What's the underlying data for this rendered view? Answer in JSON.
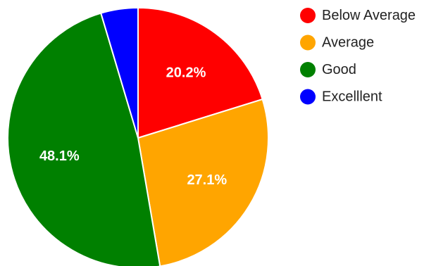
{
  "chart_data": {
    "type": "pie",
    "title": "",
    "categories": [
      "Below Average",
      "Average",
      "Good",
      "Excelllent"
    ],
    "values": [
      20.2,
      27.1,
      48.1,
      4.6
    ],
    "labels": [
      "20.2%",
      "27.1%",
      "48.1%",
      ""
    ],
    "colors": [
      "#ff0000",
      "#ffa500",
      "#008000",
      "#0000ff"
    ],
    "legend_labels": [
      "Below Average",
      " Average",
      "Good",
      "Excelllent"
    ],
    "legend_position": "right",
    "start_angle_deg": 0,
    "direction": "clockwise"
  }
}
